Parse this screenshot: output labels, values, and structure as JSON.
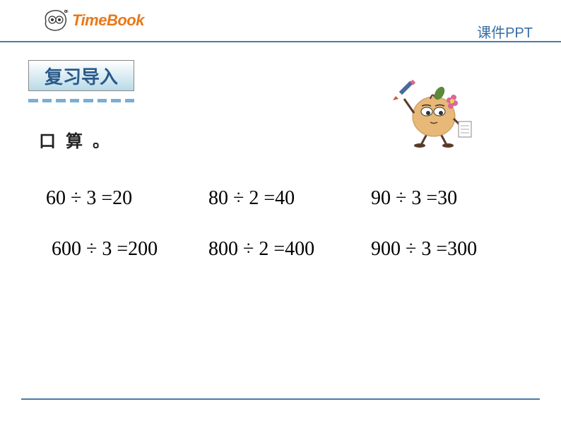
{
  "header": {
    "logo_text": "TimeBook",
    "right_text": "课件PPT"
  },
  "section": {
    "title": "复习导入",
    "subtitle": "口 算 。"
  },
  "colors": {
    "accent": "#4a7ba6",
    "logo_orange": "#e87817",
    "title_blue": "#2a5a8a",
    "dash_blue": "#7aaed4",
    "header_text": "#3a6ea5",
    "section_bg_start": "#ffffff",
    "section_bg_end": "#b8dae8",
    "text": "#232323"
  },
  "dash_count": 8,
  "equations": {
    "row1": [
      {
        "expr": "60 ÷ 3 =",
        "ans": "20"
      },
      {
        "expr": "80 ÷ 2 =",
        "ans": "40"
      },
      {
        "expr": "90 ÷ 3 =",
        "ans": "30"
      }
    ],
    "row2": [
      {
        "expr": "600 ÷ 3 =",
        "ans": "200"
      },
      {
        "expr": "800 ÷ 2 =",
        "ans": "400"
      },
      {
        "expr": "900 ÷ 3 =",
        "ans": "300"
      }
    ]
  },
  "typography": {
    "logo_fontsize": 22,
    "header_right_fontsize": 20,
    "section_title_fontsize": 26,
    "subtitle_fontsize": 24,
    "equation_fontsize": 28
  },
  "character": {
    "body_color": "#e8b878",
    "body_shadow": "#c49050",
    "flower_color": "#d8689a",
    "leaf_color": "#5a8a3a",
    "pencil_body": "#4a6a9a",
    "pencil_tip": "#c85a3a",
    "paper_color": "#ffffff"
  }
}
